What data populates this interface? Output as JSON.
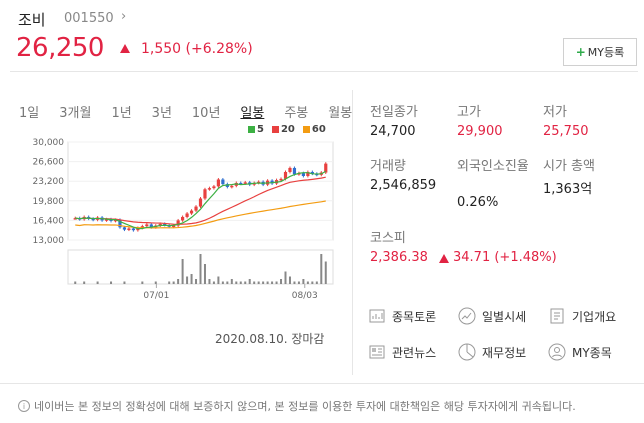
{
  "stock": {
    "name": "조비",
    "code": "001550",
    "price": "26,250",
    "change": "1,550 (+6.28%)"
  },
  "my_button_label": "MY등록",
  "period_tabs": [
    "1일",
    "3개월",
    "1년",
    "3년",
    "10년",
    "일봉",
    "주봉",
    "월봉"
  ],
  "active_tab": "일봉",
  "chart_data": {
    "type": "candlestick",
    "legend": [
      {
        "label": "5",
        "color": "#3cb043"
      },
      {
        "label": "20",
        "color": "#e8403f"
      },
      {
        "label": "60",
        "color": "#f39c12"
      }
    ],
    "y_ticks": [
      "30,000",
      "26,600",
      "23,200",
      "19,800",
      "16,400",
      "13,000"
    ],
    "ylim": [
      13000,
      30000
    ],
    "x_ticks": [
      "07/01",
      "08/03"
    ],
    "closes": [
      16800,
      16600,
      17000,
      16700,
      16500,
      16900,
      16400,
      16600,
      16300,
      16500,
      15200,
      14800,
      15000,
      14700,
      15100,
      15400,
      15700,
      15200,
      15500,
      15800,
      15600,
      15300,
      15500,
      16400,
      17000,
      17600,
      18100,
      18800,
      20200,
      21800,
      22000,
      22300,
      23500,
      22700,
      22200,
      22400,
      22900,
      22800,
      23000,
      22600,
      22900,
      23100,
      22600,
      23300,
      22800,
      23400,
      23600,
      24800,
      25500,
      24400,
      24600,
      24100,
      24800,
      24500,
      24300,
      24700,
      26250
    ],
    "volumes": [
      1,
      0,
      1,
      0,
      0,
      1,
      0,
      0,
      1,
      0,
      0,
      1,
      0,
      0,
      0,
      1,
      0,
      0,
      1,
      0,
      0,
      1,
      1,
      2,
      10,
      3,
      4,
      2,
      12,
      8,
      2,
      1,
      3,
      1,
      1,
      2,
      1,
      1,
      1,
      2,
      1,
      1,
      1,
      1,
      1,
      1,
      2,
      5,
      3,
      1,
      1,
      2,
      1,
      1,
      1,
      12,
      9
    ],
    "volume_max": 12
  },
  "chart_date": "2020.08.10. 장마감",
  "info": {
    "prev_close_label": "전일종가",
    "prev_close": "24,700",
    "high_label": "고가",
    "high": "29,900",
    "low_label": "저가",
    "low": "25,750",
    "volume_label": "거래량",
    "volume": "2,546,859",
    "foreign_label": "외국인소진율",
    "foreign": "0.26%",
    "market_cap_label": "시가 총액",
    "market_cap": "1,363억",
    "index_label": "코스피",
    "index_value": "2,386.38",
    "index_change": "34.71 (+1.48%)"
  },
  "links": [
    {
      "label": "종목토론",
      "icon": "chart-board-icon"
    },
    {
      "label": "일별시세",
      "icon": "trend-icon"
    },
    {
      "label": "기업개요",
      "icon": "document-icon"
    },
    {
      "label": "관련뉴스",
      "icon": "news-icon"
    },
    {
      "label": "재무정보",
      "icon": "pie-icon"
    },
    {
      "label": "MY종목",
      "icon": "user-icon"
    }
  ],
  "disclaimer": "네이버는 본 정보의 정확성에 대해 보증하지 않으며, 본 정보를 이용한 투자에 대한책임은 해당 투자자에게 귀속됩니다."
}
